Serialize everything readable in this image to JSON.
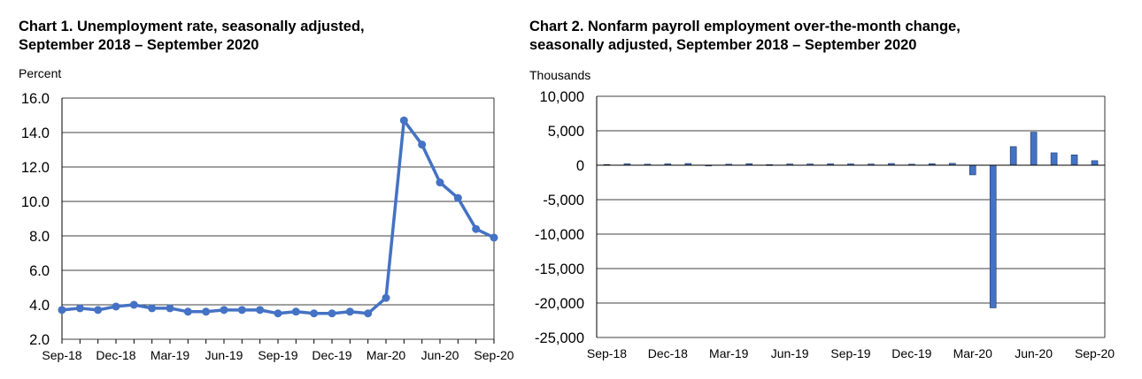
{
  "chart_data": [
    {
      "type": "line",
      "title": "Chart 1. Unemployment rate, seasonally adjusted,",
      "subtitle": "September 2018 – September 2020",
      "ylabel": "Percent",
      "ylim": [
        2.0,
        16.0
      ],
      "yticks": [
        "16.0",
        "14.0",
        "12.0",
        "10.0",
        "8.0",
        "6.0",
        "4.0",
        "2.0"
      ],
      "ytick_values": [
        16,
        14,
        12,
        10,
        8,
        6,
        4,
        2
      ],
      "xtick_labels": [
        "Sep-18",
        "Dec-18",
        "Mar-19",
        "Jun-19",
        "Sep-19",
        "Dec-19",
        "Mar-20",
        "Jun-20",
        "Sep-20"
      ],
      "grid": true,
      "color": "#4472C4",
      "categories": [
        "Sep-18",
        "Oct-18",
        "Nov-18",
        "Dec-18",
        "Jan-19",
        "Feb-19",
        "Mar-19",
        "Apr-19",
        "May-19",
        "Jun-19",
        "Jul-19",
        "Aug-19",
        "Sep-19",
        "Oct-19",
        "Nov-19",
        "Dec-19",
        "Jan-20",
        "Feb-20",
        "Mar-20",
        "Apr-20",
        "May-20",
        "Jun-20",
        "Jul-20",
        "Aug-20",
        "Sep-20"
      ],
      "values": [
        3.7,
        3.8,
        3.7,
        3.9,
        4.0,
        3.8,
        3.8,
        3.6,
        3.6,
        3.7,
        3.7,
        3.7,
        3.5,
        3.6,
        3.5,
        3.5,
        3.6,
        3.5,
        4.4,
        14.7,
        13.3,
        11.1,
        10.2,
        8.4,
        7.9
      ]
    },
    {
      "type": "bar",
      "title": "Chart 2. Nonfarm payroll employment over-the-month change,",
      "subtitle": "seasonally adjusted, September 2018 – September 2020",
      "ylabel": "Thousands",
      "ylim": [
        -25000,
        10000
      ],
      "yticks": [
        "10,000",
        "5,000",
        "0",
        "-5,000",
        "-10,000",
        "-15,000",
        "-20,000",
        "-25,000"
      ],
      "ytick_values": [
        10000,
        5000,
        0,
        -5000,
        -10000,
        -15000,
        -20000,
        -25000
      ],
      "xtick_labels": [
        "Sep-18",
        "Dec-18",
        "Mar-19",
        "Jun-19",
        "Sep-19",
        "Dec-19",
        "Mar-20",
        "Jun-20",
        "Sep-20"
      ],
      "grid": true,
      "color": "#4472C4",
      "categories": [
        "Sep-18",
        "Oct-18",
        "Nov-18",
        "Dec-18",
        "Jan-19",
        "Feb-19",
        "Mar-19",
        "Apr-19",
        "May-19",
        "Jun-19",
        "Jul-19",
        "Aug-19",
        "Sep-19",
        "Oct-19",
        "Nov-19",
        "Dec-19",
        "Jan-20",
        "Feb-20",
        "Mar-20",
        "Apr-20",
        "May-20",
        "Jun-20",
        "Jul-20",
        "Aug-20",
        "Sep-20"
      ],
      "values": [
        100,
        200,
        150,
        200,
        250,
        20,
        150,
        220,
        80,
        180,
        180,
        200,
        190,
        170,
        250,
        150,
        210,
        270,
        -1400,
        -20700,
        2700,
        4800,
        1800,
        1500,
        660
      ]
    }
  ]
}
